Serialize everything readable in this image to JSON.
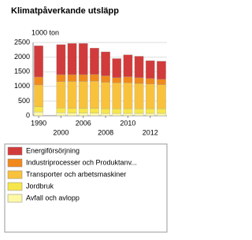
{
  "chart_data": {
    "type": "bar",
    "stacked": true,
    "title": "Klimatpåverkande utsläpp",
    "y_label": "1000 ton",
    "categories": [
      "1990",
      null,
      "2000",
      null,
      "2006",
      null,
      "2008",
      null,
      "2010",
      null,
      "2012",
      null
    ],
    "series": [
      {
        "name": "Energiförsörjning",
        "color": "#d23b3b",
        "values": [
          1070,
          null,
          1030,
          1070,
          1070,
          900,
          820,
          650,
          750,
          730,
          610,
          620
        ]
      },
      {
        "name": "Industriprocesser och Produktanv...",
        "color": "#f08a1c",
        "values": [
          270,
          null,
          240,
          230,
          230,
          230,
          220,
          180,
          210,
          200,
          190,
          180
        ]
      },
      {
        "name": "Transporter och arbetsmaskiner",
        "color": "#f9c23c",
        "values": [
          750,
          null,
          900,
          920,
          920,
          930,
          900,
          880,
          880,
          860,
          840,
          820
        ]
      },
      {
        "name": "Jordbruk",
        "color": "#f7e64a",
        "values": [
          170,
          null,
          160,
          160,
          160,
          160,
          160,
          160,
          160,
          160,
          160,
          160
        ]
      },
      {
        "name": "Avfall och avlopp",
        "color": "#fdf8a6",
        "values": [
          130,
          null,
          100,
          90,
          90,
          90,
          80,
          80,
          80,
          80,
          80,
          80
        ]
      }
    ],
    "ylim": [
      0,
      2500
    ],
    "yticks": [
      0,
      500,
      1000,
      1500,
      2000,
      2500
    ],
    "grid": true
  }
}
